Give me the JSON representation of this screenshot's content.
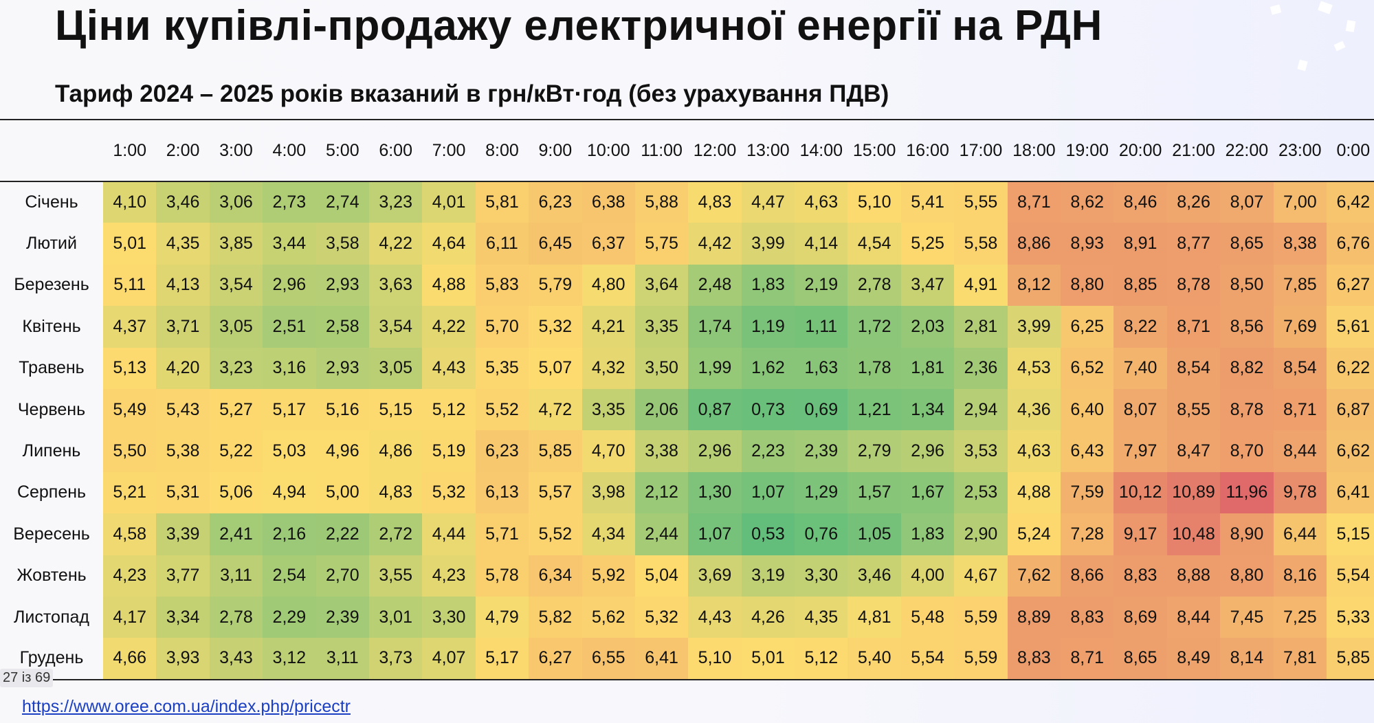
{
  "title": "Ціни купівлі-продажу електричної енергії на РДН",
  "subtitle": "Тариф 2024 – 2025 років вказаний в грн/кВт·год (без урахування ПДВ)",
  "hours": [
    "1:00",
    "2:00",
    "3:00",
    "4:00",
    "5:00",
    "6:00",
    "7:00",
    "8:00",
    "9:00",
    "10:00",
    "11:00",
    "12:00",
    "13:00",
    "14:00",
    "15:00",
    "16:00",
    "17:00",
    "18:00",
    "19:00",
    "20:00",
    "21:00",
    "22:00",
    "23:00",
    "0:00"
  ],
  "rows": [
    {
      "month": "Січень",
      "values": [
        "4,10",
        "3,46",
        "3,06",
        "2,73",
        "2,74",
        "3,23",
        "4,01",
        "5,81",
        "6,23",
        "6,38",
        "5,88",
        "4,83",
        "4,47",
        "4,63",
        "5,10",
        "5,41",
        "5,55",
        "8,71",
        "8,62",
        "8,46",
        "8,26",
        "8,07",
        "7,00",
        "6,42"
      ]
    },
    {
      "month": "Лютий",
      "values": [
        "5,01",
        "4,35",
        "3,85",
        "3,44",
        "3,58",
        "4,22",
        "4,64",
        "6,11",
        "6,45",
        "6,37",
        "5,75",
        "4,42",
        "3,99",
        "4,14",
        "4,54",
        "5,25",
        "5,58",
        "8,86",
        "8,93",
        "8,91",
        "8,77",
        "8,65",
        "8,38",
        "6,76"
      ]
    },
    {
      "month": "Березень",
      "values": [
        "5,11",
        "4,13",
        "3,54",
        "2,96",
        "2,93",
        "3,63",
        "4,88",
        "5,83",
        "5,79",
        "4,80",
        "3,64",
        "2,48",
        "1,83",
        "2,19",
        "2,78",
        "3,47",
        "4,91",
        "8,12",
        "8,80",
        "8,85",
        "8,78",
        "8,50",
        "7,85",
        "6,27"
      ]
    },
    {
      "month": "Квітень",
      "values": [
        "4,37",
        "3,71",
        "3,05",
        "2,51",
        "2,58",
        "3,54",
        "4,22",
        "5,70",
        "5,32",
        "4,21",
        "3,35",
        "1,74",
        "1,19",
        "1,11",
        "1,72",
        "2,03",
        "2,81",
        "3,99",
        "6,25",
        "8,22",
        "8,71",
        "8,56",
        "7,69",
        "5,61"
      ]
    },
    {
      "month": "Травень",
      "values": [
        "5,13",
        "4,20",
        "3,23",
        "3,16",
        "2,93",
        "3,05",
        "4,43",
        "5,35",
        "5,07",
        "4,32",
        "3,50",
        "1,99",
        "1,62",
        "1,63",
        "1,78",
        "1,81",
        "2,36",
        "4,53",
        "6,52",
        "7,40",
        "8,54",
        "8,82",
        "8,54",
        "6,22"
      ]
    },
    {
      "month": "Червень",
      "values": [
        "5,49",
        "5,43",
        "5,27",
        "5,17",
        "5,16",
        "5,15",
        "5,12",
        "5,52",
        "4,72",
        "3,35",
        "2,06",
        "0,87",
        "0,73",
        "0,69",
        "1,21",
        "1,34",
        "2,94",
        "4,36",
        "6,40",
        "8,07",
        "8,55",
        "8,78",
        "8,71",
        "6,87"
      ]
    },
    {
      "month": "Липень",
      "values": [
        "5,50",
        "5,38",
        "5,22",
        "5,03",
        "4,96",
        "4,86",
        "5,19",
        "6,23",
        "5,85",
        "4,70",
        "3,38",
        "2,96",
        "2,23",
        "2,39",
        "2,79",
        "2,96",
        "3,53",
        "4,63",
        "6,43",
        "7,97",
        "8,47",
        "8,70",
        "8,44",
        "6,62"
      ]
    },
    {
      "month": "Серпень",
      "values": [
        "5,21",
        "5,31",
        "5,06",
        "4,94",
        "5,00",
        "4,83",
        "5,32",
        "6,13",
        "5,57",
        "3,98",
        "2,12",
        "1,30",
        "1,07",
        "1,29",
        "1,57",
        "1,67",
        "2,53",
        "4,88",
        "7,59",
        "10,12",
        "10,89",
        "11,96",
        "9,78",
        "6,41"
      ]
    },
    {
      "month": "Вересень",
      "values": [
        "4,58",
        "3,39",
        "2,41",
        "2,16",
        "2,22",
        "2,72",
        "4,44",
        "5,71",
        "5,52",
        "4,34",
        "2,44",
        "1,07",
        "0,53",
        "0,76",
        "1,05",
        "1,83",
        "2,90",
        "5,24",
        "7,28",
        "9,17",
        "10,48",
        "8,90",
        "6,44",
        "5,15"
      ]
    },
    {
      "month": "Жовтень",
      "values": [
        "4,23",
        "3,77",
        "3,11",
        "2,54",
        "2,70",
        "3,55",
        "4,23",
        "5,78",
        "6,34",
        "5,92",
        "5,04",
        "3,69",
        "3,19",
        "3,30",
        "3,46",
        "4,00",
        "4,67",
        "7,62",
        "8,66",
        "8,83",
        "8,88",
        "8,80",
        "8,16",
        "5,54"
      ]
    },
    {
      "month": "Листопад",
      "values": [
        "4,17",
        "3,34",
        "2,78",
        "2,29",
        "2,39",
        "3,01",
        "3,30",
        "4,79",
        "5,82",
        "5,62",
        "5,32",
        "4,43",
        "4,26",
        "4,35",
        "4,81",
        "5,48",
        "5,59",
        "8,89",
        "8,83",
        "8,69",
        "8,44",
        "7,45",
        "7,25",
        "5,33"
      ]
    },
    {
      "month": "Грудень",
      "values": [
        "4,66",
        "3,93",
        "3,43",
        "3,12",
        "3,11",
        "3,73",
        "4,07",
        "5,17",
        "6,27",
        "6,55",
        "6,41",
        "5,10",
        "5,01",
        "5,12",
        "5,40",
        "5,54",
        "5,59",
        "8,83",
        "8,71",
        "8,65",
        "8,49",
        "8,14",
        "7,81",
        "5,85"
      ]
    }
  ],
  "pager": "27 із 69",
  "source_link": "https://www.oree.com.ua/index.php/pricectr",
  "colors": {
    "low": "#63be7b",
    "mid": "#fddc6f",
    "high": "#e06a6a",
    "link": "#1a3fc2"
  }
}
